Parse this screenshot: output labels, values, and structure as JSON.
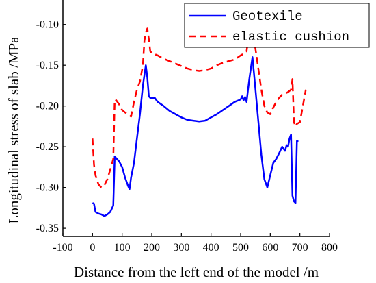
{
  "chart_data": {
    "type": "line",
    "xlabel": "Distance from the left end of the model /m",
    "ylabel": "Longitudinal stress of slab /MPa",
    "xlim": [
      -100,
      800
    ],
    "ylim": [
      -0.36,
      -0.07
    ],
    "xticks": [
      -100,
      0,
      100,
      200,
      300,
      400,
      500,
      600,
      700,
      800
    ],
    "yticks": [
      -0.35,
      -0.3,
      -0.25,
      -0.2,
      -0.15,
      -0.1
    ],
    "ytick_labels": [
      "-0.35",
      "-0.30",
      "-0.25",
      "-0.20",
      "-0.15",
      "-0.10"
    ],
    "grid": false,
    "legend_position": "top-right",
    "series": [
      {
        "name": "Geotexile",
        "color": "#0000ff",
        "style": "solid",
        "x": [
          0,
          5,
          10,
          20,
          30,
          40,
          50,
          60,
          70,
          75,
          80,
          90,
          100,
          110,
          120,
          125,
          130,
          140,
          150,
          160,
          170,
          180,
          185,
          190,
          195,
          200,
          210,
          220,
          240,
          260,
          280,
          300,
          320,
          340,
          360,
          380,
          400,
          420,
          440,
          460,
          480,
          500,
          505,
          510,
          515,
          520,
          525,
          530,
          540,
          550,
          560,
          570,
          580,
          590,
          600,
          610,
          620,
          630,
          640,
          650,
          655,
          660,
          665,
          670,
          675,
          680,
          685,
          690,
          695
        ],
        "y": [
          -0.319,
          -0.32,
          -0.33,
          -0.332,
          -0.333,
          -0.335,
          -0.333,
          -0.33,
          -0.322,
          -0.262,
          -0.264,
          -0.268,
          -0.275,
          -0.288,
          -0.298,
          -0.302,
          -0.288,
          -0.27,
          -0.24,
          -0.21,
          -0.175,
          -0.15,
          -0.165,
          -0.188,
          -0.19,
          -0.19,
          -0.19,
          -0.195,
          -0.2,
          -0.206,
          -0.21,
          -0.214,
          -0.217,
          -0.218,
          -0.219,
          -0.218,
          -0.214,
          -0.21,
          -0.205,
          -0.2,
          -0.195,
          -0.192,
          -0.188,
          -0.193,
          -0.189,
          -0.195,
          -0.18,
          -0.165,
          -0.14,
          -0.18,
          -0.22,
          -0.26,
          -0.29,
          -0.3,
          -0.285,
          -0.27,
          -0.265,
          -0.258,
          -0.25,
          -0.255,
          -0.248,
          -0.25,
          -0.24,
          -0.235,
          -0.31,
          -0.317,
          -0.319,
          -0.243,
          -0.243
        ]
      },
      {
        "name": "elastic cushion",
        "color": "#ff0000",
        "style": "dashed",
        "x": [
          0,
          5,
          10,
          20,
          30,
          40,
          50,
          60,
          70,
          75,
          80,
          90,
          100,
          110,
          120,
          130,
          140,
          150,
          160,
          170,
          175,
          180,
          185,
          190,
          195,
          200,
          220,
          240,
          260,
          280,
          300,
          320,
          340,
          360,
          380,
          400,
          420,
          440,
          460,
          480,
          500,
          510,
          520,
          525,
          530,
          535,
          540,
          550,
          560,
          570,
          580,
          590,
          600,
          610,
          620,
          630,
          640,
          650,
          660,
          670,
          675,
          680,
          685,
          690,
          700,
          710,
          720
        ],
        "y": [
          -0.24,
          -0.272,
          -0.285,
          -0.296,
          -0.3,
          -0.297,
          -0.29,
          -0.278,
          -0.265,
          -0.192,
          -0.193,
          -0.198,
          -0.205,
          -0.208,
          -0.21,
          -0.213,
          -0.195,
          -0.18,
          -0.17,
          -0.15,
          -0.12,
          -0.11,
          -0.105,
          -0.118,
          -0.133,
          -0.135,
          -0.138,
          -0.142,
          -0.145,
          -0.148,
          -0.151,
          -0.154,
          -0.156,
          -0.157,
          -0.156,
          -0.154,
          -0.15,
          -0.147,
          -0.145,
          -0.143,
          -0.138,
          -0.136,
          -0.133,
          -0.12,
          -0.11,
          -0.097,
          -0.11,
          -0.13,
          -0.155,
          -0.18,
          -0.2,
          -0.208,
          -0.21,
          -0.202,
          -0.195,
          -0.19,
          -0.186,
          -0.185,
          -0.183,
          -0.18,
          -0.167,
          -0.22,
          -0.225,
          -0.222,
          -0.22,
          -0.2,
          -0.18
        ]
      }
    ]
  }
}
